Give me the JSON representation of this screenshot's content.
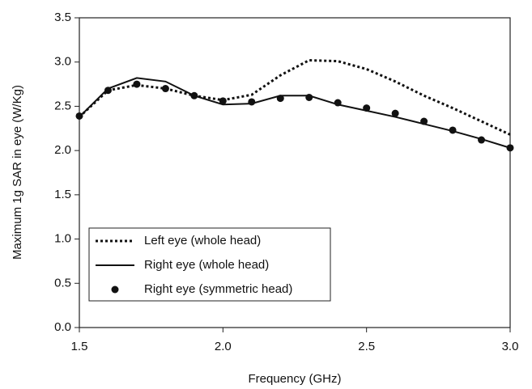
{
  "chart_data": {
    "type": "line",
    "xlabel": "Frequency (GHz)",
    "ylabel": "Maximum 1g SAR in eye (W/Kg)",
    "x": [
      1.5,
      1.6,
      1.7,
      1.8,
      1.9,
      2.0,
      2.1,
      2.2,
      2.3,
      2.4,
      2.5,
      2.6,
      2.7,
      2.8,
      2.9,
      3.0
    ],
    "series": [
      {
        "name": "Left eye (whole head)",
        "color": "#111111",
        "linestyle": "dotted",
        "values": [
          2.38,
          2.68,
          2.74,
          2.7,
          2.62,
          2.57,
          2.63,
          2.85,
          3.02,
          3.01,
          2.92,
          2.78,
          2.62,
          2.48,
          2.33,
          2.18
        ]
      },
      {
        "name": "Right eye (whole head)",
        "color": "#111111",
        "linestyle": "solid",
        "values": [
          2.38,
          2.7,
          2.82,
          2.78,
          2.62,
          2.52,
          2.53,
          2.62,
          2.62,
          2.52,
          2.45,
          2.38,
          2.3,
          2.22,
          2.13,
          2.03
        ]
      },
      {
        "name": "Right eye (symmetric head)",
        "color": "#111111",
        "linestyle": "none",
        "marker": "circle",
        "values": [
          2.39,
          2.68,
          2.75,
          2.7,
          2.62,
          2.56,
          2.55,
          2.59,
          2.6,
          2.54,
          2.48,
          2.42,
          2.33,
          2.23,
          2.12,
          2.03
        ]
      }
    ],
    "xlim": [
      1.5,
      3.0
    ],
    "xticks": [
      1.5,
      {
        "value": 2,
        "label": "2.0"
      },
      2.5,
      {
        "value": 3,
        "label": "3.0"
      }
    ],
    "ylim": [
      0,
      3.5
    ],
    "yticks": [
      {
        "value": 0,
        "label": "0.0"
      },
      0.5,
      {
        "value": 1,
        "label": "1.0"
      },
      1.5,
      {
        "value": 2,
        "label": "2.0"
      },
      2.5,
      {
        "value": 3,
        "label": "3.0"
      },
      3.5
    ],
    "grid": false,
    "legend": "lower left"
  }
}
